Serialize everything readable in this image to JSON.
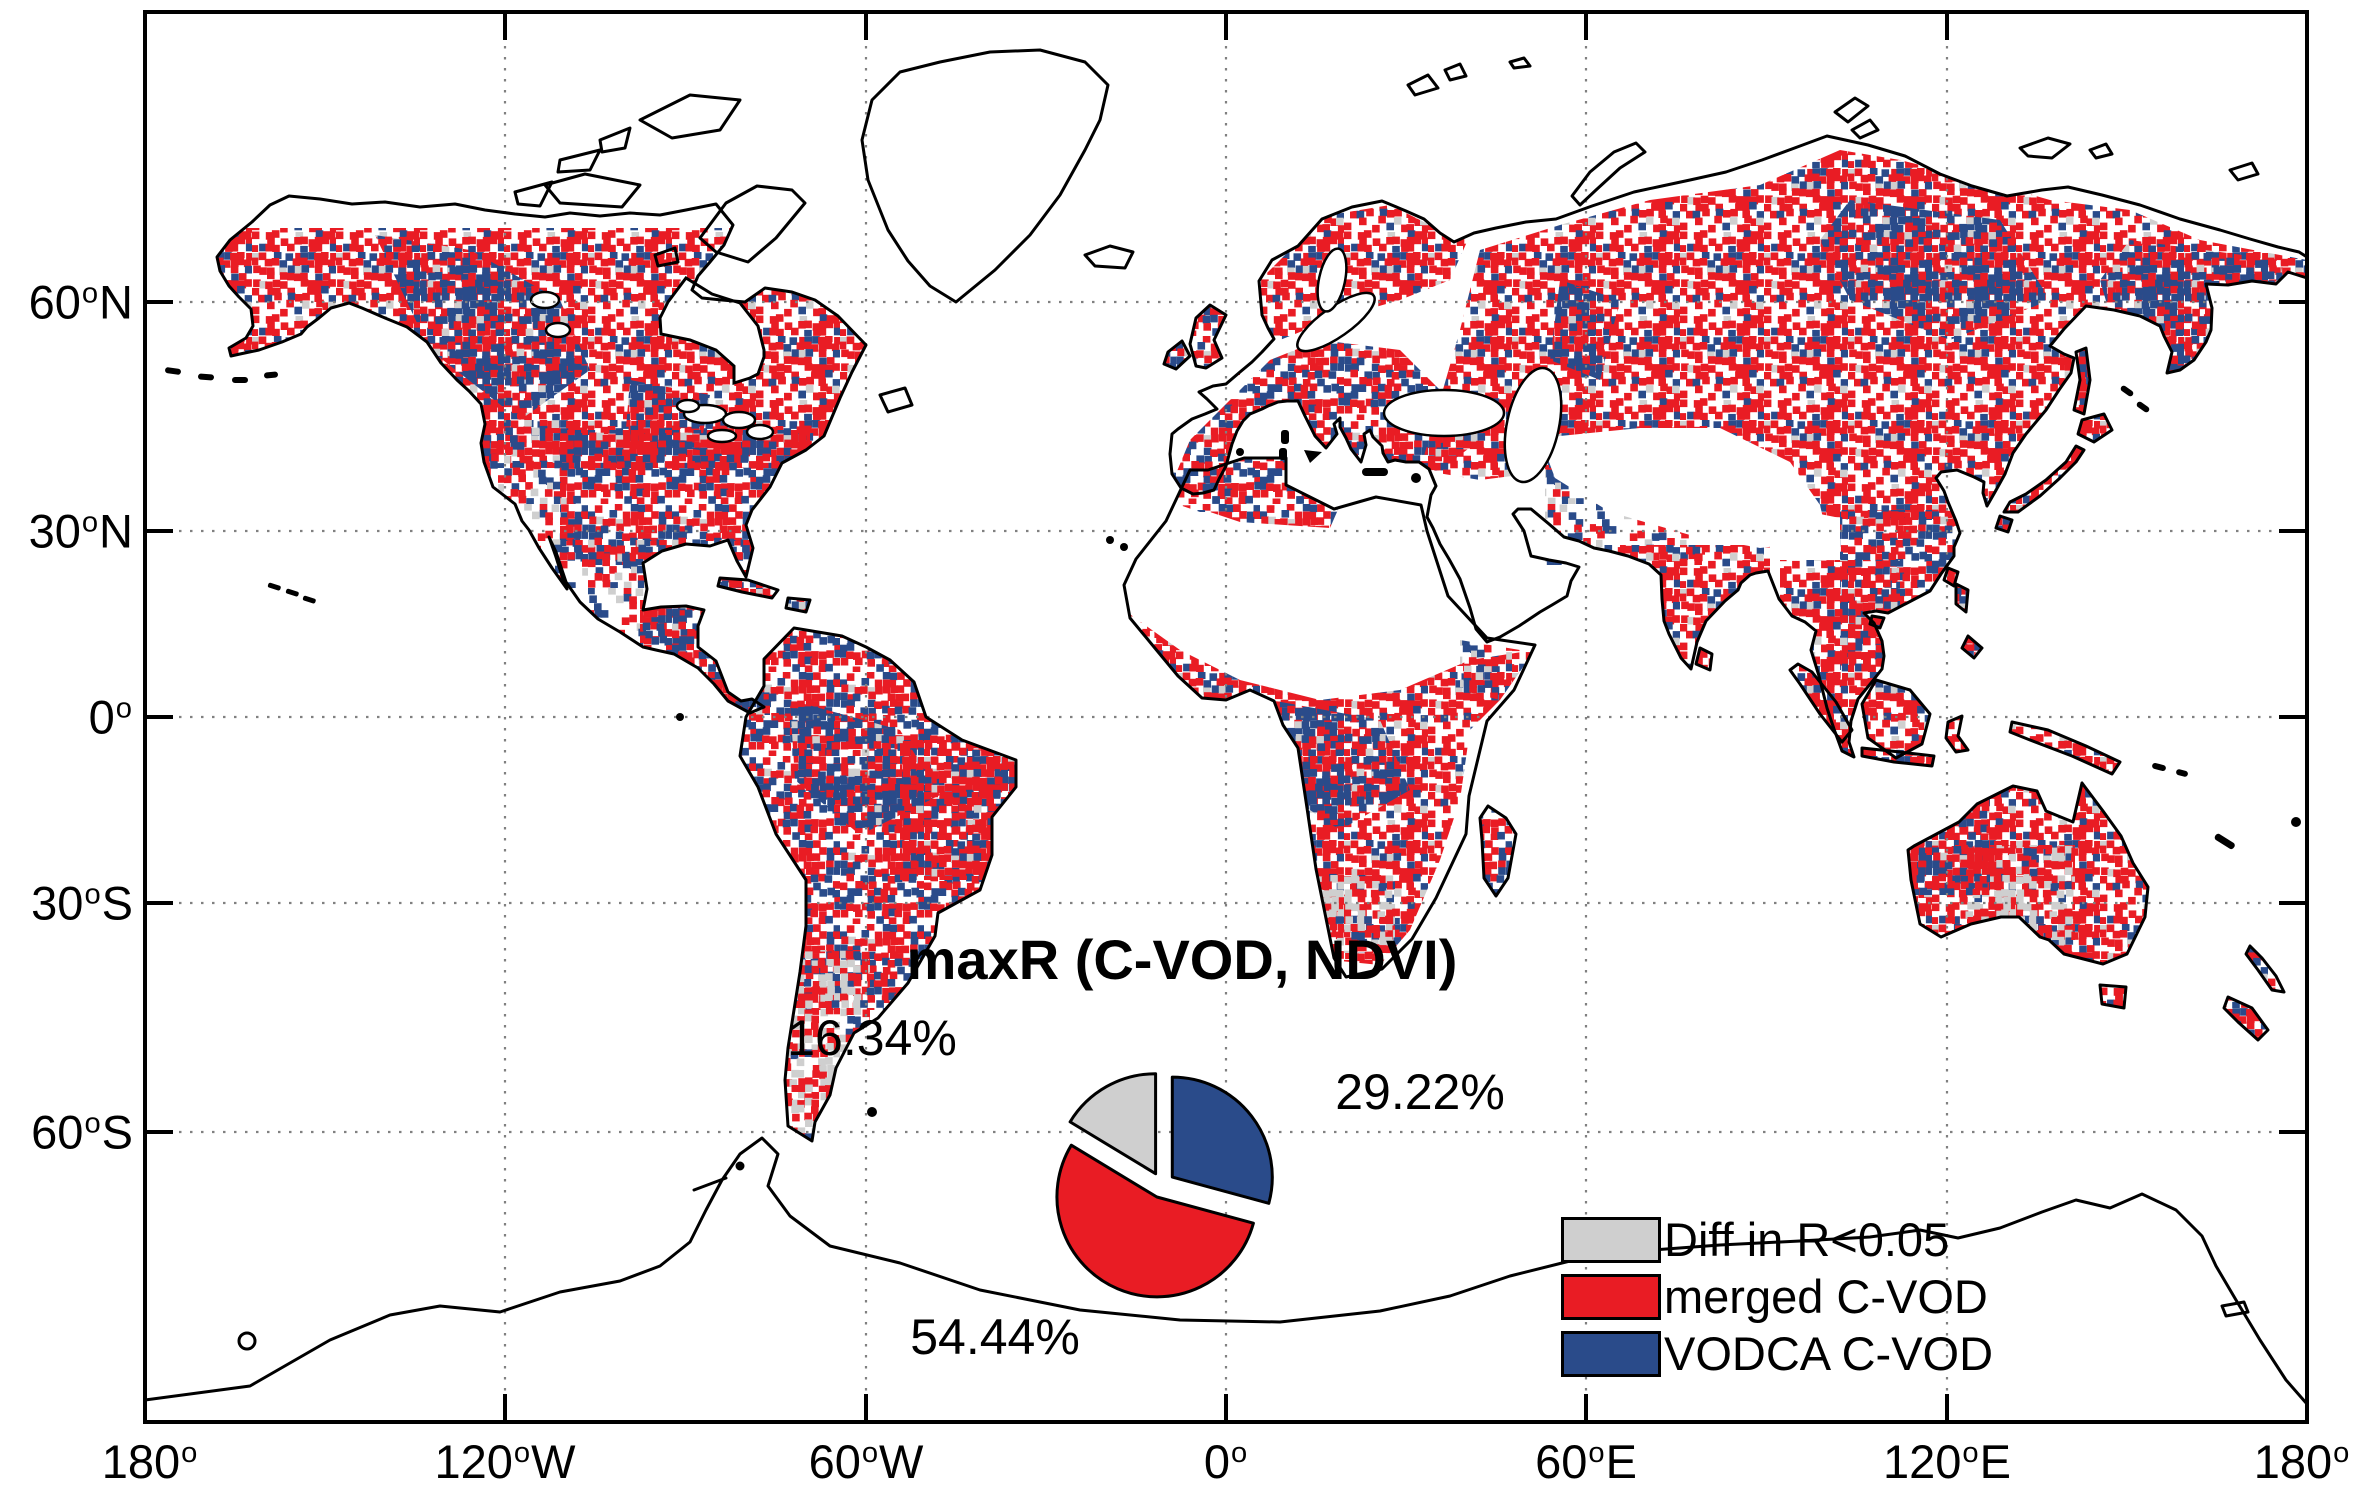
{
  "figure": {
    "title": "maxR (C-VOD, NDVI)",
    "type_note": "global map of best-correlating C-band VOD product vs NDVI, with exploded pie inset"
  },
  "axes": {
    "deg": "o",
    "x_ticks": [
      {
        "num": "180",
        "dir": ""
      },
      {
        "num": "120",
        "dir": "W"
      },
      {
        "num": "60",
        "dir": "W"
      },
      {
        "num": "0",
        "dir": ""
      },
      {
        "num": "60",
        "dir": "E"
      },
      {
        "num": "120",
        "dir": "E"
      },
      {
        "num": "180",
        "dir": ""
      }
    ],
    "y_ticks": [
      {
        "num": "60",
        "dir": "N"
      },
      {
        "num": "30",
        "dir": "N"
      },
      {
        "num": "0",
        "dir": ""
      },
      {
        "num": "30",
        "dir": "S"
      },
      {
        "num": "60",
        "dir": "S"
      }
    ]
  },
  "legend": {
    "items": [
      {
        "label": "Diff in R<0.05",
        "color": "#CFCFCF"
      },
      {
        "label": "merged C-VOD",
        "color": "#E91C24"
      },
      {
        "label": "VODCA C-VOD",
        "color": "#2A4B8A"
      }
    ]
  },
  "chart_data": {
    "type": "pie",
    "title": "maxR (C-VOD, NDVI)",
    "unit": "%",
    "start_angle_deg": 0,
    "direction": "clockwise",
    "exploded": true,
    "slices": [
      {
        "label": "VODCA C-VOD",
        "value": 29.22,
        "display": "29.22%",
        "color": "#2A4B8A"
      },
      {
        "label": "merged C-VOD",
        "value": 54.44,
        "display": "54.44%",
        "color": "#E91C24"
      },
      {
        "label": "Diff in R<0.05",
        "value": 16.34,
        "display": "16.34%",
        "color": "#CFCFCF"
      }
    ],
    "map_classes": [
      "Diff in R<0.05",
      "merged C-VOD",
      "VODCA C-VOD"
    ],
    "x_axis_tick_labels": [
      "180°",
      "120°W",
      "60°W",
      "0°",
      "60°E",
      "120°E",
      "180°"
    ],
    "y_axis_tick_labels": [
      "60°N",
      "30°N",
      "0°",
      "30°S",
      "60°S"
    ],
    "grid": "dotted, 30-degree interval"
  },
  "colors": {
    "red": "#E91C24",
    "blue": "#2A4B8A",
    "gray": "#CFCFCF",
    "outline": "#000000",
    "grid": "#808080",
    "background": "#FFFFFF"
  },
  "map_patterns": {
    "tile": 84,
    "cell": 7,
    "specs": [
      {
        "id": "pat-red",
        "seed": 11,
        "red": 0.52,
        "blue": 0.12,
        "gray": 0.03
      },
      {
        "id": "pat-mix",
        "seed": 23,
        "red": 0.36,
        "blue": 0.28,
        "gray": 0.04
      },
      {
        "id": "pat-blue",
        "seed": 37,
        "red": 0.17,
        "blue": 0.52,
        "gray": 0.03
      },
      {
        "id": "pat-sparse",
        "seed": 53,
        "red": 0.2,
        "blue": 0.08,
        "gray": 0.07
      },
      {
        "id": "pat-gray",
        "seed": 71,
        "red": 0.26,
        "blue": 0.12,
        "gray": 0.3
      }
    ]
  }
}
